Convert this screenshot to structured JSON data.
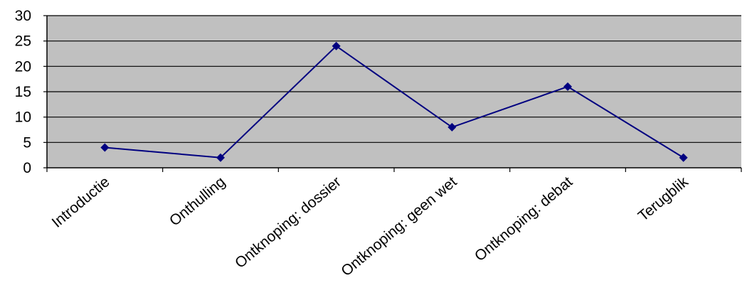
{
  "chart_data": {
    "type": "line",
    "categories": [
      "Introductie",
      "Onthulling",
      "Ontknoping: dossier",
      "Ontknoping: geen wet",
      "Ontknoping: debat",
      "Terugblik"
    ],
    "series": [
      {
        "values": [
          4,
          2,
          24,
          8,
          16,
          2
        ]
      }
    ],
    "title": "",
    "xlabel": "",
    "ylabel": "",
    "ylim": [
      0,
      30
    ],
    "yticks": [
      0,
      5,
      10,
      15,
      20,
      25,
      30
    ],
    "ytick_labels": [
      "0",
      "5",
      "10",
      "15",
      "20",
      "25",
      "30"
    ],
    "grid": "horizontal",
    "legend": "none",
    "colors": {
      "plot_background": "#c0c0c0",
      "line": "#000080",
      "marker": "#000080",
      "gridline": "#000000"
    },
    "marker": "diamond"
  }
}
